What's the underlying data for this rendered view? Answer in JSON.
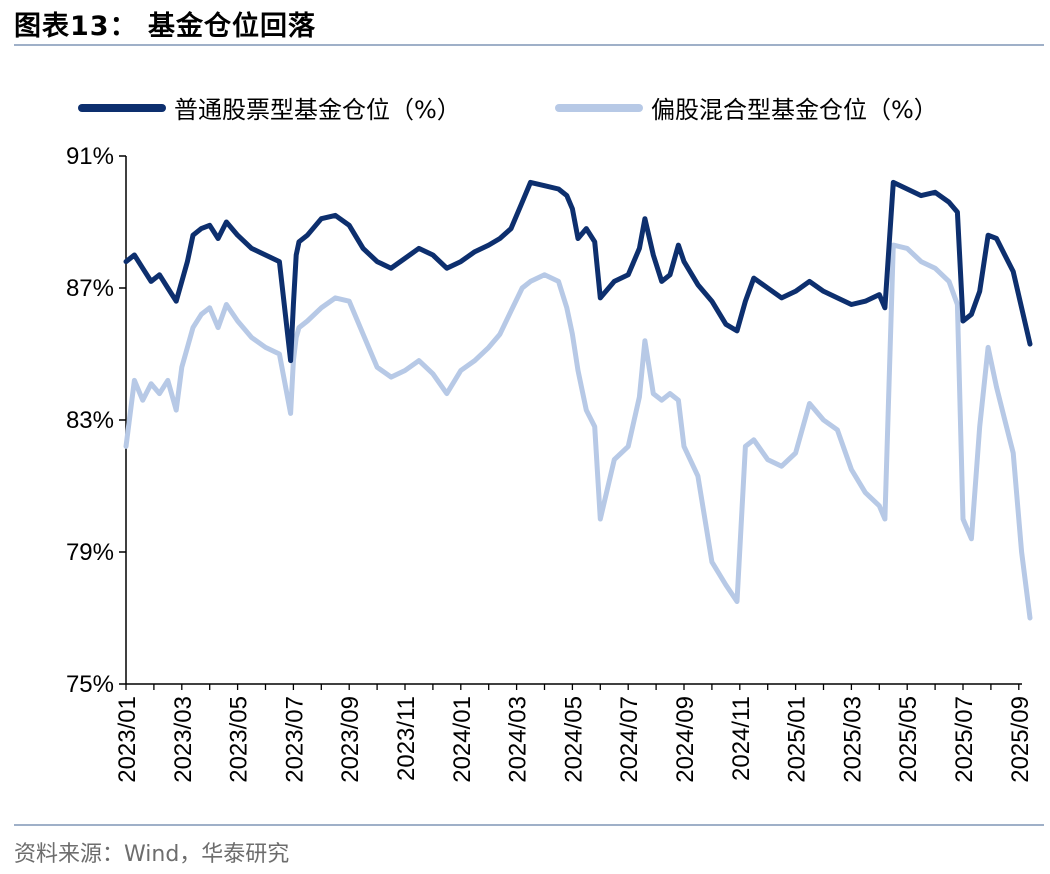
{
  "title": "图表13：  基金仓位回落",
  "source": "资料来源：Wind，华泰研究",
  "colors": {
    "series1": "#0d2f6e",
    "series2": "#b7c9e6",
    "axis": "#000000",
    "rule": "#9fb0c8"
  },
  "chart_data": {
    "type": "line",
    "title": "基金仓位回落",
    "xlabel": "",
    "ylabel": "",
    "ylim": [
      75,
      91
    ],
    "yticks": [
      75,
      79,
      83,
      87,
      91
    ],
    "ytick_labels": [
      "75%",
      "79%",
      "83%",
      "87%",
      "91%"
    ],
    "xticks": [
      "2023/01",
      "2023/03",
      "2023/05",
      "2023/07",
      "2023/09",
      "2023/11",
      "2024/01",
      "2024/03",
      "2024/05",
      "2024/07",
      "2024/09",
      "2024/11",
      "2025/01",
      "2025/03",
      "2025/05",
      "2025/07",
      "2025/09"
    ],
    "legend_position": "top",
    "x_range_months": [
      0,
      32.4
    ],
    "series": [
      {
        "name": "普通股票型基金仓位（%）",
        "x": [
          0,
          0.3,
          0.6,
          0.9,
          1.2,
          1.5,
          1.8,
          2.0,
          2.2,
          2.4,
          2.7,
          3.0,
          3.3,
          3.6,
          4.0,
          4.5,
          5.0,
          5.5,
          5.9,
          6.0,
          6.1,
          6.2,
          6.5,
          7.0,
          7.5,
          8.0,
          8.5,
          9.0,
          9.5,
          10.0,
          10.5,
          11.0,
          11.5,
          12.0,
          12.5,
          13.0,
          13.4,
          13.8,
          14.2,
          14.5,
          15.0,
          15.5,
          15.8,
          16.0,
          16.2,
          16.5,
          16.8,
          17.0,
          17.5,
          18.0,
          18.4,
          18.6,
          18.9,
          19.2,
          19.5,
          19.8,
          20.0,
          20.5,
          21.0,
          21.5,
          21.9,
          22.2,
          22.5,
          23.0,
          23.5,
          24.0,
          24.5,
          25.0,
          25.5,
          26.0,
          26.5,
          27.0,
          27.2,
          27.5,
          28.0,
          28.5,
          29.0,
          29.5,
          29.8,
          30.0,
          30.3,
          30.6,
          30.9,
          31.2,
          31.5,
          31.8,
          32.1,
          32.4
        ],
        "values": [
          87.8,
          88.0,
          87.6,
          87.2,
          87.4,
          87.0,
          86.6,
          87.2,
          87.8,
          88.6,
          88.8,
          88.9,
          88.5,
          89.0,
          88.6,
          88.2,
          88.0,
          87.8,
          84.8,
          86.5,
          88.0,
          88.4,
          88.6,
          89.1,
          89.2,
          88.9,
          88.2,
          87.8,
          87.6,
          87.9,
          88.2,
          88.0,
          87.6,
          87.8,
          88.1,
          88.3,
          88.5,
          88.8,
          89.6,
          90.2,
          90.1,
          90.0,
          89.8,
          89.4,
          88.5,
          88.8,
          88.4,
          86.7,
          87.2,
          87.4,
          88.2,
          89.1,
          88.0,
          87.2,
          87.4,
          88.3,
          87.8,
          87.1,
          86.6,
          85.9,
          85.7,
          86.6,
          87.3,
          87.0,
          86.7,
          86.9,
          87.2,
          86.9,
          86.7,
          86.5,
          86.6,
          86.8,
          86.4,
          90.2,
          90.0,
          89.8,
          89.9,
          89.6,
          89.3,
          86.0,
          86.2,
          86.9,
          88.6,
          88.5,
          88.0,
          87.5,
          86.4,
          85.3
        ]
      },
      {
        "name": "偏股混合型基金仓位（%）",
        "x": [
          0,
          0.3,
          0.6,
          0.9,
          1.2,
          1.5,
          1.8,
          2.0,
          2.2,
          2.4,
          2.7,
          3.0,
          3.3,
          3.6,
          4.0,
          4.5,
          5.0,
          5.5,
          5.9,
          6.0,
          6.1,
          6.2,
          6.5,
          7.0,
          7.5,
          8.0,
          8.5,
          9.0,
          9.5,
          10.0,
          10.5,
          11.0,
          11.5,
          12.0,
          12.5,
          13.0,
          13.4,
          13.8,
          14.2,
          14.5,
          15.0,
          15.5,
          15.8,
          16.0,
          16.2,
          16.5,
          16.8,
          17.0,
          17.5,
          18.0,
          18.4,
          18.6,
          18.9,
          19.2,
          19.5,
          19.8,
          20.0,
          20.5,
          21.0,
          21.5,
          21.9,
          22.2,
          22.5,
          23.0,
          23.5,
          24.0,
          24.5,
          25.0,
          25.5,
          26.0,
          26.5,
          27.0,
          27.2,
          27.5,
          28.0,
          28.5,
          29.0,
          29.5,
          29.8,
          30.0,
          30.3,
          30.6,
          30.9,
          31.2,
          31.5,
          31.8,
          32.1,
          32.4
        ],
        "values": [
          82.2,
          84.2,
          83.6,
          84.1,
          83.8,
          84.2,
          83.3,
          84.6,
          85.2,
          85.8,
          86.2,
          86.4,
          85.8,
          86.5,
          86.0,
          85.5,
          85.2,
          85.0,
          83.2,
          84.8,
          85.5,
          85.8,
          86.0,
          86.4,
          86.7,
          86.6,
          85.6,
          84.6,
          84.3,
          84.5,
          84.8,
          84.4,
          83.8,
          84.5,
          84.8,
          85.2,
          85.6,
          86.3,
          87.0,
          87.2,
          87.4,
          87.2,
          86.4,
          85.6,
          84.5,
          83.3,
          82.8,
          80.0,
          81.8,
          82.2,
          83.7,
          85.4,
          83.8,
          83.6,
          83.8,
          83.6,
          82.2,
          81.3,
          78.7,
          78.0,
          77.5,
          82.2,
          82.4,
          81.8,
          81.6,
          82.0,
          83.5,
          83.0,
          82.7,
          81.5,
          80.8,
          80.4,
          80.0,
          88.3,
          88.2,
          87.8,
          87.6,
          87.2,
          86.5,
          80.0,
          79.4,
          82.8,
          85.2,
          84.0,
          83.0,
          82.0,
          79.0,
          77.0
        ]
      }
    ]
  }
}
